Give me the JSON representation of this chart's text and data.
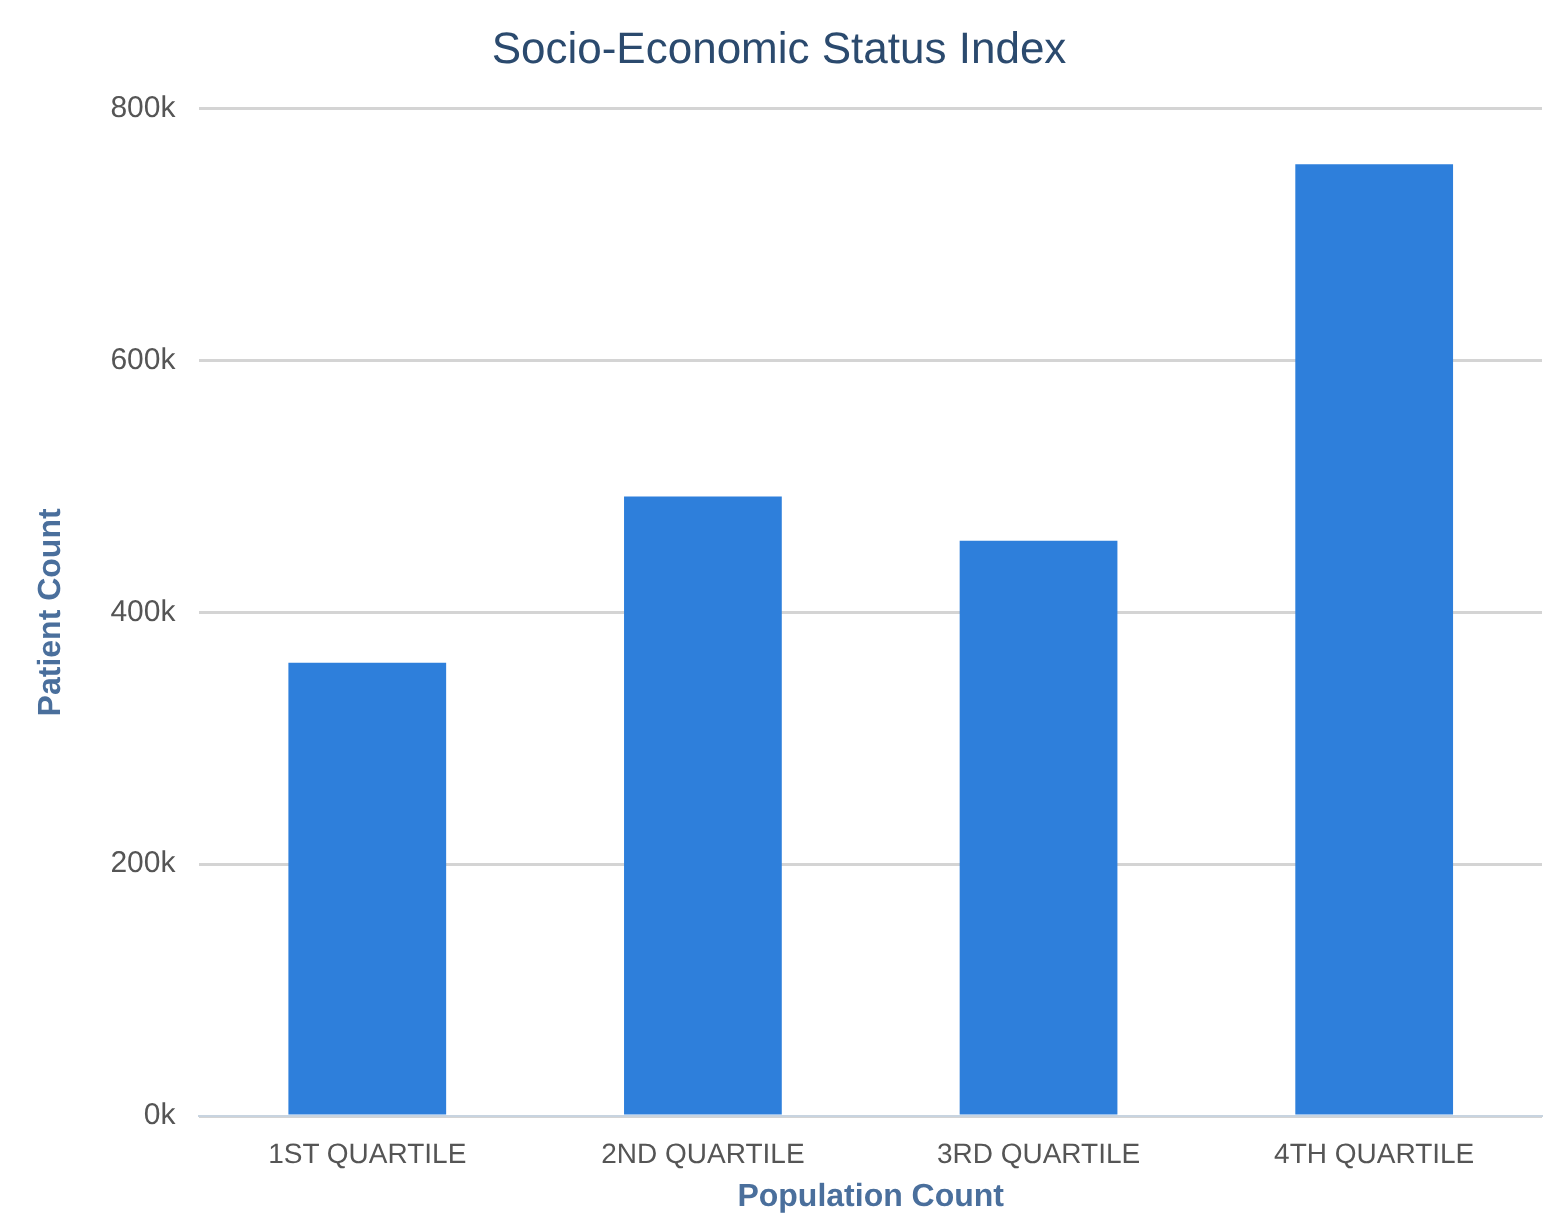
{
  "chart_data": {
    "type": "bar",
    "title": "Socio-Economic Status Index",
    "xlabel": "Population Count",
    "ylabel": "Patient Count",
    "categories": [
      "1ST QUARTILE",
      "2ND QUARTILE",
      "3RD QUARTILE",
      "4TH QUARTILE"
    ],
    "values": [
      360000,
      492000,
      457000,
      756000
    ],
    "color": "#2e7fdb",
    "ylim": [
      0,
      800000
    ],
    "yticks": [
      {
        "value": 0,
        "label": "0k"
      },
      {
        "value": 200000,
        "label": "200k"
      },
      {
        "value": 400000,
        "label": "400k"
      },
      {
        "value": 600000,
        "label": "600k"
      },
      {
        "value": 800000,
        "label": "800k"
      }
    ],
    "grid": "y"
  }
}
